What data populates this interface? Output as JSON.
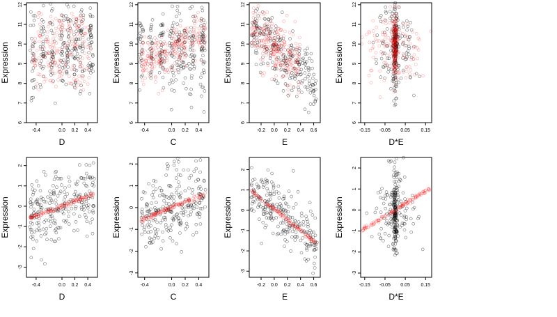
{
  "colors": {
    "black_points": "#000000",
    "red_points": "#ff0000",
    "axis": "#000000",
    "background": "#ffffff"
  },
  "chart_data": [
    {
      "type": "scatter",
      "row": 1,
      "col": 1,
      "xlabel": "D",
      "ylabel": "Expression",
      "title": "",
      "xlim": [
        -0.55,
        0.55
      ],
      "ylim": [
        6,
        12.1
      ],
      "xticks": [
        "-0.4",
        "0.0",
        "0.2",
        "0.4"
      ],
      "xtick_values": [
        -0.4,
        0.0,
        0.2,
        0.4
      ],
      "yticks": [
        "6",
        "7",
        "8",
        "9",
        "10",
        "11",
        "12"
      ],
      "ytick_values": [
        6,
        7,
        8,
        9,
        10,
        11,
        12
      ],
      "series": [
        {
          "color": "#000000",
          "pattern": "cloud",
          "center": [
            0.05,
            9.8
          ],
          "spread": [
            0.28,
            1.1
          ]
        },
        {
          "color": "#ff0000",
          "pattern": "bands",
          "levels": [
            11.2,
            10.5,
            9.8,
            9.0,
            8.1
          ],
          "x_range": [
            -0.45,
            0.45
          ]
        }
      ]
    },
    {
      "type": "scatter",
      "row": 1,
      "col": 2,
      "xlabel": "C",
      "ylabel": "Expression",
      "title": "",
      "xlim": [
        -0.5,
        0.55
      ],
      "ylim": [
        6,
        12.1
      ],
      "xticks": [
        "-0.4",
        "0.0",
        "0.2",
        "0.4"
      ],
      "xtick_values": [
        -0.4,
        0.0,
        0.2,
        0.4
      ],
      "yticks": [
        "6",
        "7",
        "8",
        "9",
        "10",
        "11",
        "12"
      ],
      "ytick_values": [
        6,
        7,
        8,
        9,
        10,
        11,
        12
      ],
      "series": [
        {
          "color": "#000000",
          "pattern": "cloud",
          "center": [
            0.05,
            9.8
          ],
          "spread": [
            0.28,
            1.1
          ]
        },
        {
          "color": "#ff0000",
          "pattern": "trend",
          "slope": 2.0,
          "intercept": 9.8,
          "x_range": [
            -0.45,
            0.5
          ],
          "spread": 0.6
        }
      ]
    },
    {
      "type": "scatter",
      "row": 1,
      "col": 3,
      "xlabel": "E",
      "ylabel": "Expression",
      "title": "",
      "xlim": [
        -0.38,
        0.7
      ],
      "ylim": [
        6,
        12.1
      ],
      "xticks": [
        "-0.2",
        "0.0",
        "0.2",
        "0.4",
        "0.6"
      ],
      "xtick_values": [
        -0.2,
        0.0,
        0.2,
        0.4,
        0.6
      ],
      "yticks": [
        "6",
        "7",
        "8",
        "9",
        "10",
        "11",
        "12"
      ],
      "ytick_values": [
        6,
        7,
        8,
        9,
        10,
        11,
        12
      ],
      "series": [
        {
          "color": "#000000",
          "pattern": "trend",
          "slope": -3.2,
          "intercept": 9.8,
          "x_range": [
            -0.35,
            0.65
          ],
          "spread": 0.8
        },
        {
          "color": "#ff0000",
          "pattern": "trend",
          "slope": -2.2,
          "intercept": 9.8,
          "x_range": [
            -0.35,
            0.4
          ],
          "spread": 0.7
        }
      ]
    },
    {
      "type": "scatter",
      "row": 1,
      "col": 4,
      "xlabel": "D*E",
      "ylabel": "Expression",
      "title": "",
      "xlim": [
        -0.17,
        0.18
      ],
      "ylim": [
        6,
        12.1
      ],
      "xticks": [
        "-0.15",
        "-0.05",
        "0.05",
        "0.15"
      ],
      "xtick_values": [
        -0.15,
        -0.05,
        0.05,
        0.15
      ],
      "yticks": [
        "6",
        "7",
        "8",
        "9",
        "10",
        "11",
        "12"
      ],
      "ytick_values": [
        6,
        7,
        8,
        9,
        10,
        11,
        12
      ],
      "series": [
        {
          "color": "#000000",
          "pattern": "spike",
          "center": [
            0.0,
            9.8
          ],
          "spread": [
            0.05,
            1.1
          ]
        },
        {
          "color": "#ff0000",
          "pattern": "spike",
          "center": [
            0.0,
            10.0
          ],
          "spread": [
            0.07,
            0.9
          ]
        }
      ]
    },
    {
      "type": "scatter",
      "row": 2,
      "col": 1,
      "xlabel": "D",
      "ylabel": "Expression",
      "title": "",
      "xlim": [
        -0.55,
        0.55
      ],
      "ylim": [
        -3.5,
        2.4
      ],
      "xticks": [
        "-0.4",
        "0.0",
        "0.2",
        "0.4"
      ],
      "xtick_values": [
        -0.4,
        0.0,
        0.2,
        0.4
      ],
      "yticks": [
        "-3",
        "-2",
        "-1",
        "0",
        "1",
        "2"
      ],
      "ytick_values": [
        -3,
        -2,
        -1,
        0,
        1,
        2
      ],
      "series": [
        {
          "color": "#000000",
          "pattern": "trend",
          "slope": 1.2,
          "intercept": 0.0,
          "x_range": [
            -0.5,
            0.5
          ],
          "spread": 0.9
        },
        {
          "color": "#ff0000",
          "pattern": "line",
          "slope": 1.2,
          "intercept": 0.0,
          "x_range": [
            -0.5,
            0.5
          ]
        }
      ]
    },
    {
      "type": "scatter",
      "row": 2,
      "col": 2,
      "xlabel": "C",
      "ylabel": "Expression",
      "title": "",
      "xlim": [
        -0.5,
        0.55
      ],
      "ylim": [
        -3.2,
        2.3
      ],
      "xticks": [
        "-0.4",
        "0.0",
        "0.2",
        "0.4"
      ],
      "xtick_values": [
        -0.4,
        0.0,
        0.2,
        0.4
      ],
      "yticks": [
        "-3",
        "-2",
        "-1",
        "0",
        "1",
        "2"
      ],
      "ytick_values": [
        -3,
        -2,
        -1,
        0,
        1,
        2
      ],
      "series": [
        {
          "color": "#000000",
          "pattern": "trend",
          "slope": 1.3,
          "intercept": 0.0,
          "x_range": [
            -0.45,
            0.5
          ],
          "spread": 0.9
        },
        {
          "color": "#ff0000",
          "pattern": "line",
          "slope": 1.3,
          "intercept": 0.0,
          "x_range": [
            -0.45,
            0.5
          ]
        }
      ]
    },
    {
      "type": "scatter",
      "row": 2,
      "col": 3,
      "xlabel": "E",
      "ylabel": "Expression",
      "title": "",
      "xlim": [
        -0.38,
        0.7
      ],
      "ylim": [
        -3.3,
        2.6
      ],
      "xticks": [
        "-0.2",
        "0.0",
        "0.2",
        "0.4",
        "0.6"
      ],
      "xtick_values": [
        -0.2,
        0.0,
        0.2,
        0.4,
        0.6
      ],
      "yticks": [
        "-3",
        "-2",
        "-1",
        "0",
        "1",
        "2"
      ],
      "ytick_values": [
        -3,
        -2,
        -1,
        0,
        1,
        2
      ],
      "series": [
        {
          "color": "#000000",
          "pattern": "trend",
          "slope": -2.6,
          "intercept": 0.05,
          "x_range": [
            -0.35,
            0.65
          ],
          "spread": 0.7
        },
        {
          "color": "#ff0000",
          "pattern": "line",
          "slope": -2.6,
          "intercept": 0.05,
          "x_range": [
            -0.35,
            0.65
          ]
        }
      ]
    },
    {
      "type": "scatter",
      "row": 2,
      "col": 4,
      "xlabel": "D*E",
      "ylabel": "Expression",
      "title": "",
      "xlim": [
        -0.17,
        0.18
      ],
      "ylim": [
        -3.2,
        2.5
      ],
      "xticks": [
        "-0.15",
        "-0.05",
        "0.05",
        "0.15"
      ],
      "xtick_values": [
        -0.15,
        -0.05,
        0.05,
        0.15
      ],
      "yticks": [
        "-3",
        "-2",
        "-1",
        "0",
        "1",
        "2"
      ],
      "ytick_values": [
        -3,
        -2,
        -1,
        0,
        1,
        2
      ],
      "series": [
        {
          "color": "#000000",
          "pattern": "spike",
          "center": [
            0.0,
            0.0
          ],
          "spread": [
            0.05,
            0.9
          ]
        },
        {
          "color": "#ff0000",
          "pattern": "line",
          "slope": 6.0,
          "intercept": 0.0,
          "x_range": [
            -0.16,
            0.17
          ]
        }
      ]
    }
  ]
}
